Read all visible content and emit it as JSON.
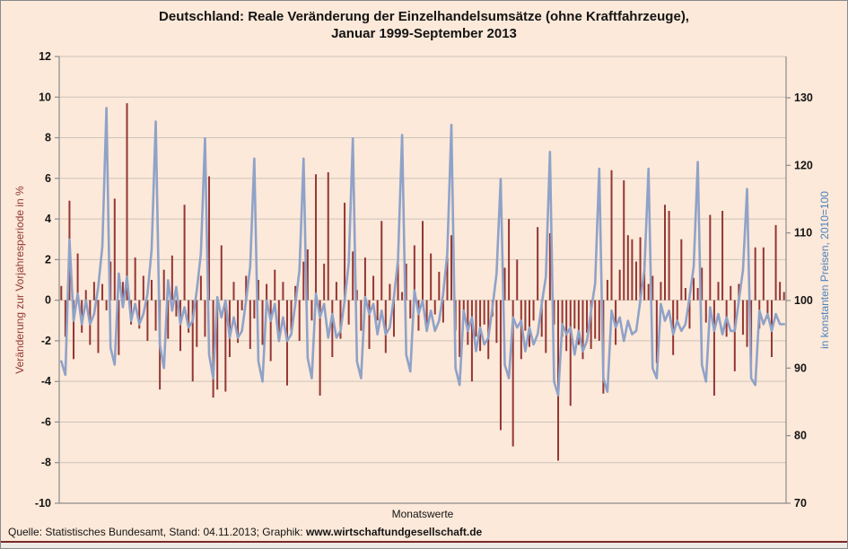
{
  "title": {
    "line1": "Deutschland: Reale Veränderung der Einzelhandelsumsätze (ohne Kraftfahrzeuge),",
    "line2": "Januar 1999-September 2013"
  },
  "footer": {
    "prefix": "Quelle: Statistisches Bundesamt, Stand: 04.11.2013; Graphik: ",
    "site": "www.wirtschaftundgesellschaft.de"
  },
  "colors": {
    "background": "#FCE9D9",
    "bar": "#943634",
    "line": "#8FA2C8",
    "grid": "#CCC3BB",
    "axis": "#8C8C8C",
    "tick_label": "#141414",
    "left_axis_title": "#953735",
    "right_axis_title": "#4E81BD",
    "bottom_rule": "#7B2A27"
  },
  "chart_data": {
    "type": "bar",
    "subtype": "bar-and-line-combo",
    "title": "Deutschland: Reale Veränderung der Einzelhandelsumsätze (ohne Kraftfahrzeuge), Januar 1999-September 2013",
    "xlabel": "Monatswerte",
    "x_start": "1999-01",
    "x_end": "2013-09",
    "n_months": 177,
    "grid": "horizontal-only",
    "legend": "none",
    "left_axis": {
      "title": "Veränderung zur Vorjahresperiode in %",
      "min": -10,
      "max": 12,
      "step": 2,
      "ticks": [
        12,
        10,
        8,
        6,
        4,
        2,
        0,
        -2,
        -4,
        -6,
        -8,
        -10
      ]
    },
    "right_axis": {
      "title": "in konstanten Preisen, 2010=100",
      "min": 70,
      "max": 130,
      "step": 10,
      "ticks": [
        130,
        120,
        110,
        100,
        90,
        80,
        70
      ]
    },
    "series": [
      {
        "name": "Veränderung zur Vorjahresperiode in %",
        "type": "bar",
        "axis": "left",
        "color": "#943634",
        "values": [
          0.7,
          -1.8,
          4.9,
          -2.9,
          2.3,
          -1.6,
          0.5,
          -2.2,
          0.9,
          -2.6,
          0.8,
          -0.5,
          1.9,
          5.0,
          -2.7,
          0.9,
          9.7,
          -1.2,
          2.1,
          -1.4,
          1.2,
          -2.0,
          1.0,
          -1.5,
          -4.4,
          1.5,
          -1.9,
          2.2,
          -0.8,
          -2.5,
          4.7,
          -1.6,
          -4.0,
          -2.3,
          1.2,
          -1.8,
          6.1,
          -4.8,
          -4.4,
          2.7,
          -4.5,
          -2.8,
          0.9,
          -2.1,
          -0.5,
          1.2,
          -2.4,
          -0.9,
          1.0,
          -2.2,
          0.8,
          -3.0,
          1.5,
          -1.8,
          0.9,
          -4.2,
          -1.5,
          0.7,
          -2.0,
          1.9,
          2.5,
          -1.0,
          6.2,
          -4.7,
          1.8,
          6.3,
          -2.8,
          0.9,
          -1.9,
          4.8,
          -1.2,
          2.4,
          0.5,
          -1.5,
          2.1,
          -2.4,
          1.2,
          -1.0,
          3.9,
          -2.6,
          0.8,
          -1.8,
          2.2,
          0.4,
          1.8,
          -0.9,
          2.7,
          -1.5,
          3.9,
          -1.2,
          2.3,
          -0.7,
          1.4,
          -1.1,
          2.6,
          3.2,
          -1.5,
          -2.8,
          -0.9,
          -2.2,
          -4.0,
          -1.8,
          -2.5,
          -1.2,
          -2.9,
          -0.8,
          -2.1,
          -6.4,
          1.6,
          4.0,
          -7.2,
          2.0,
          -2.9,
          -1.5,
          -2.3,
          -1.0,
          3.6,
          -1.8,
          -2.6,
          3.3,
          -1.2,
          -7.9,
          -1.8,
          -2.5,
          -5.2,
          -1.4,
          -2.2,
          -2.9,
          -1.6,
          -2.4,
          -1.9,
          -2.0,
          -4.6,
          1.0,
          6.4,
          -2.2,
          1.5,
          5.9,
          3.2,
          3.0,
          1.9,
          3.1,
          1.9,
          0.8,
          1.2,
          -3.1,
          0.9,
          4.7,
          4.4,
          -2.7,
          -1.2,
          3.0,
          0.6,
          -1.4,
          1.1,
          0.6,
          1.6,
          -1.1,
          4.2,
          -4.7,
          0.9,
          4.4,
          -1.8,
          0.7,
          -3.5,
          0.8,
          -1.7,
          -2.3,
          -3.2,
          2.6,
          -1.4,
          2.6,
          -0.9,
          -2.8,
          3.7,
          0.9,
          0.4
        ]
      },
      {
        "name": "in konstanten Preisen, 2010=100",
        "type": "line",
        "axis": "right",
        "color": "#8FA2C8",
        "values": [
          91,
          89,
          109,
          97,
          101,
          96.5,
          100,
          96.5,
          98,
          102,
          108,
          128.5,
          93,
          90.5,
          104,
          99,
          103.5,
          97,
          99.5,
          96.5,
          98,
          101,
          107.5,
          126.5,
          93.5,
          90,
          103,
          98.5,
          102,
          96.5,
          99,
          96,
          97,
          101.5,
          107,
          124,
          92,
          88.5,
          100.5,
          97.5,
          100,
          94.5,
          97.5,
          94.5,
          95.5,
          100,
          105,
          121,
          91,
          88,
          100,
          97,
          99.5,
          94,
          97.5,
          94,
          95,
          99.5,
          104.5,
          121,
          91.5,
          88.5,
          101,
          97.5,
          99.5,
          94.5,
          98,
          94.5,
          95.5,
          100,
          105.5,
          124,
          91,
          88.5,
          100.5,
          98,
          99.5,
          95,
          98.5,
          95,
          96,
          100.5,
          106,
          124.5,
          92,
          89.5,
          101.5,
          98,
          100,
          95.5,
          98.5,
          95.5,
          97,
          101,
          107,
          126,
          90,
          87.5,
          98.5,
          95.5,
          97.5,
          92.5,
          96,
          93.5,
          94.5,
          99,
          104,
          118,
          90.5,
          88.5,
          97.5,
          96,
          97,
          92.5,
          96,
          93.5,
          95,
          99.5,
          103.5,
          122,
          88,
          86,
          96.5,
          95,
          96,
          92,
          95.5,
          92.5,
          94,
          98.5,
          102.5,
          119.5,
          88.5,
          86.5,
          98.5,
          96,
          97.5,
          94,
          97,
          95,
          95.5,
          100,
          104.5,
          119.5,
          90,
          88.5,
          99.5,
          97,
          98.5,
          95,
          97,
          95.5,
          96.5,
          100.5,
          105,
          120.5,
          90.5,
          88,
          99,
          95.5,
          98,
          95,
          97.5,
          95.5,
          95.5,
          100,
          104.5,
          116.5,
          88.5,
          87.5,
          98.5,
          96.5,
          98,
          95.5,
          98,
          96.5,
          96.5
        ]
      }
    ]
  }
}
